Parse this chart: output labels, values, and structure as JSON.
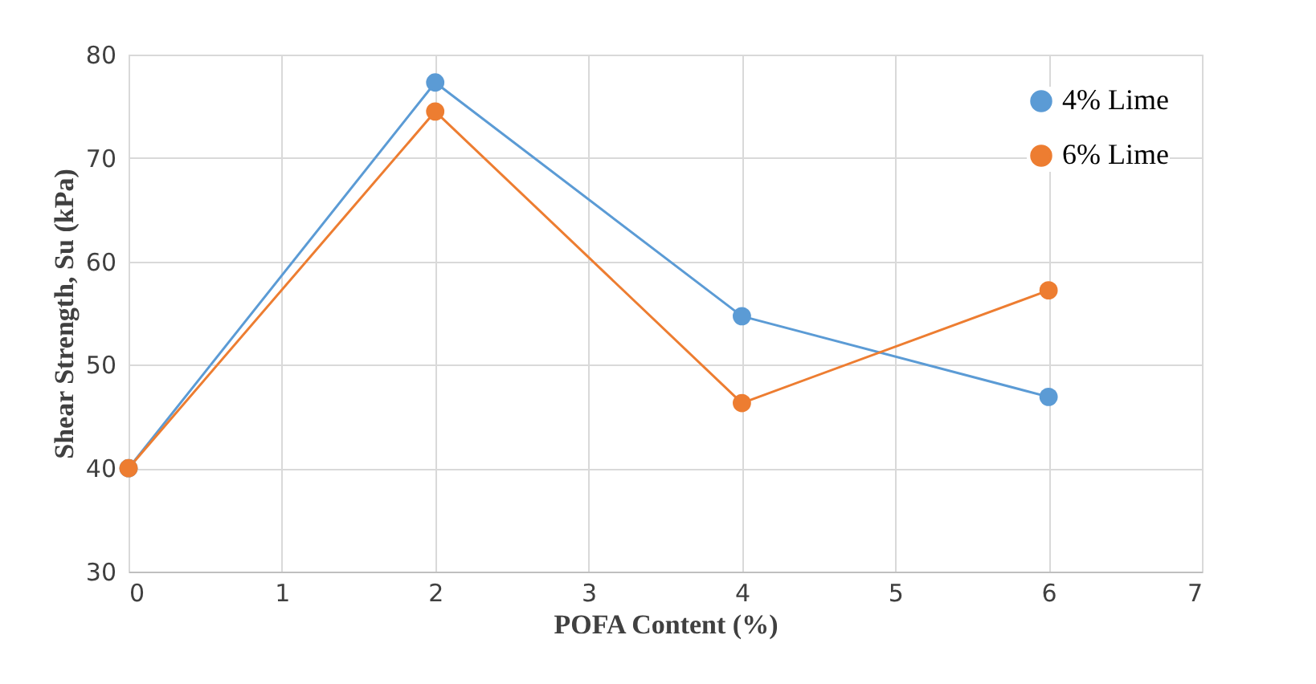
{
  "chart_data": {
    "type": "line",
    "xlabel": "POFA Content (%)",
    "ylabel": "Shear Strength, Su (kPa)",
    "x": [
      0,
      2,
      4,
      6
    ],
    "series": [
      {
        "name": "4% Lime",
        "color": "#5b9bd5",
        "values": [
          40,
          77.3,
          54.7,
          46.9
        ]
      },
      {
        "name": "6% Lime",
        "color": "#ed7d31",
        "values": [
          40,
          74.5,
          46.3,
          57.2
        ]
      }
    ],
    "xlim": [
      0,
      7
    ],
    "xticks": [
      0,
      1,
      2,
      3,
      4,
      5,
      6,
      7
    ],
    "ylim": [
      30,
      80
    ],
    "yticks": [
      30,
      40,
      50,
      60,
      70,
      80
    ],
    "grid": true,
    "legend": "top right",
    "marker": "circle",
    "line_style": "solid"
  }
}
